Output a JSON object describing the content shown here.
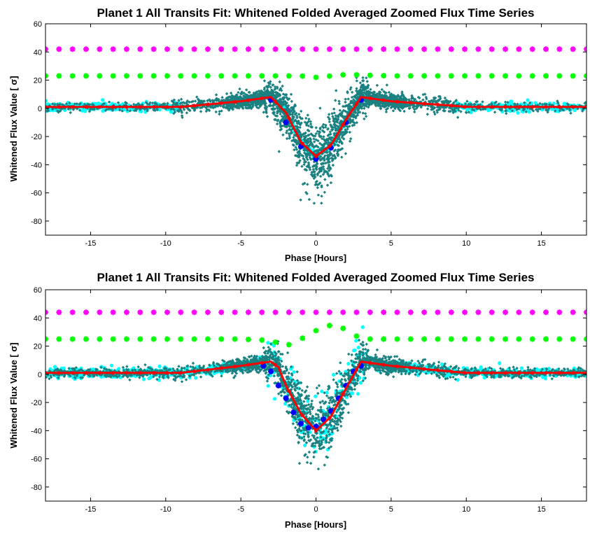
{
  "chart_data": [
    {
      "type": "scatter",
      "title": "Planet 1 All Transits Fit: Whitened Folded Averaged Zoomed Flux Time Series",
      "xlabel": "Phase [Hours]",
      "ylabel": "Whitened Flux Value [ σ]",
      "xlim": [
        -18,
        18
      ],
      "ylim": [
        -90,
        60
      ],
      "xticks": [
        -15,
        -10,
        -5,
        0,
        5,
        10,
        15
      ],
      "yticks": [
        60,
        40,
        20,
        0,
        -20,
        -40,
        -60,
        -80
      ],
      "grid": false,
      "colors": {
        "magenta": "#ff00ff",
        "green": "#00ff00",
        "cyan": "#00ffff",
        "teal": "#1a8080",
        "blue": "#0000ff",
        "red": "#ff0000"
      },
      "series": [
        {
          "key": "magenta_line",
          "values_x": [
            -18,
            18
          ],
          "values_y": [
            42,
            42
          ]
        },
        {
          "key": "green_line",
          "x": [
            -18,
            -10,
            -5,
            -2,
            -1,
            0,
            1,
            2,
            5,
            10,
            18
          ],
          "y": [
            23,
            23,
            23,
            23,
            23,
            22,
            23,
            24,
            23,
            23,
            23
          ]
        },
        {
          "key": "red_model",
          "x": [
            -18,
            -10,
            -9,
            -5,
            -3,
            -2,
            -1,
            0,
            1,
            2,
            3,
            5,
            9,
            10,
            18
          ],
          "y": [
            1,
            1,
            1,
            5,
            8,
            -3,
            -24,
            -34,
            -26,
            -8,
            8,
            5,
            2,
            1,
            1
          ]
        },
        {
          "key": "blue_binned",
          "x": [
            -3,
            -2,
            -1,
            0,
            1,
            2,
            3
          ],
          "y": [
            6,
            -10,
            -27,
            -36,
            -28,
            -10,
            6
          ]
        }
      ]
    },
    {
      "type": "scatter",
      "title": "Planet 1 All Transits Fit: Whitened Folded Averaged Zoomed Flux Time Series",
      "xlabel": "Phase [Hours]",
      "ylabel": "Whitened Flux Value [ σ]",
      "xlim": [
        -18,
        18
      ],
      "ylim": [
        -90,
        60
      ],
      "xticks": [
        -15,
        -10,
        -5,
        0,
        5,
        10,
        15
      ],
      "yticks": [
        60,
        40,
        20,
        0,
        -20,
        -40,
        -60,
        -80
      ],
      "grid": false,
      "colors": {
        "magenta": "#ff00ff",
        "green": "#00ff00",
        "cyan": "#00ffff",
        "teal": "#1a8080",
        "blue": "#0000ff",
        "red": "#ff0000"
      },
      "series": [
        {
          "key": "magenta_line",
          "values_x": [
            -18,
            18
          ],
          "values_y": [
            44,
            44
          ]
        },
        {
          "key": "green_line",
          "x": [
            -18,
            -10,
            -5,
            -3,
            -2,
            -1,
            0,
            1,
            2,
            3,
            5,
            10,
            18
          ],
          "y": [
            25,
            25,
            25,
            24,
            20,
            25,
            31,
            35,
            32,
            25,
            25,
            25,
            25
          ]
        },
        {
          "key": "red_model",
          "x": [
            -18,
            -10,
            -9,
            -5,
            -3,
            -2.5,
            -2,
            -1,
            0,
            1,
            2,
            3,
            5,
            9,
            10,
            18
          ],
          "y": [
            1,
            1,
            1,
            6,
            9,
            5,
            -8,
            -28,
            -40,
            -30,
            -10,
            9,
            6,
            2,
            1,
            1
          ]
        },
        {
          "key": "blue_binned",
          "x": [
            -3.5,
            -3,
            -2.5,
            -2,
            -1.5,
            -1,
            -0.5,
            0,
            0.5,
            1,
            1.5,
            2,
            2.5,
            3
          ],
          "y": [
            6,
            2,
            -8,
            -17,
            -27,
            -35,
            -38,
            -37,
            -32,
            -26,
            -17,
            -8,
            2,
            6
          ]
        }
      ]
    }
  ]
}
